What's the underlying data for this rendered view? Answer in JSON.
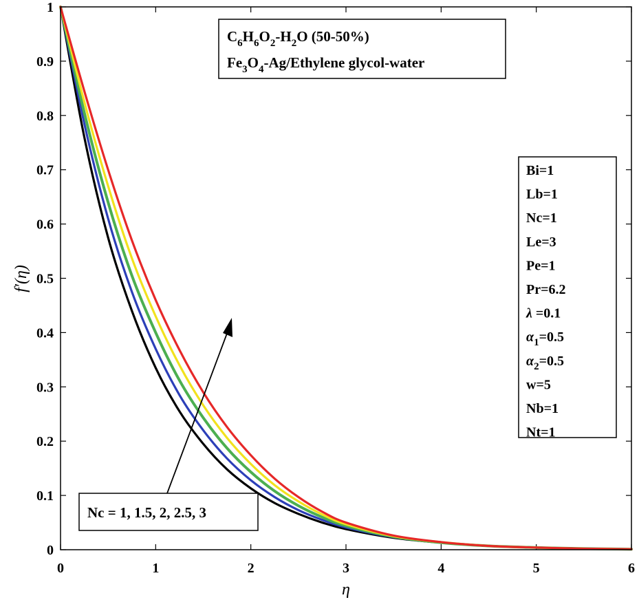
{
  "chart_data": {
    "type": "line",
    "xlabel": "η",
    "ylabel": "f′(η)",
    "xlim": [
      0,
      6
    ],
    "ylim": [
      0,
      1
    ],
    "xticks": [
      "0",
      "1",
      "2",
      "3",
      "4",
      "5",
      "6"
    ],
    "yticks": [
      "0",
      "0.1",
      "0.2",
      "0.3",
      "0.4",
      "0.5",
      "0.6",
      "0.7",
      "0.8",
      "0.9",
      "1"
    ],
    "grid": false,
    "x": [
      0,
      0.25,
      0.5,
      0.75,
      1,
      1.25,
      1.5,
      1.75,
      2,
      2.25,
      2.5,
      2.75,
      3,
      3.5,
      4,
      4.5,
      5,
      5.5,
      6
    ],
    "series": [
      {
        "color": "#000000",
        "values": [
          1,
          0.76,
          0.575,
          0.44,
          0.335,
          0.255,
          0.195,
          0.148,
          0.113,
          0.086,
          0.066,
          0.05,
          0.038,
          0.022,
          0.013,
          0.007,
          0.004,
          0.002,
          0.001
        ]
      },
      {
        "color": "#2c3fb8",
        "values": [
          1,
          0.785,
          0.61,
          0.475,
          0.37,
          0.285,
          0.22,
          0.168,
          0.128,
          0.097,
          0.073,
          0.055,
          0.041,
          0.023,
          0.013,
          0.007,
          0.004,
          0.002,
          0.001
        ]
      },
      {
        "color": "#4caf50",
        "values": [
          1,
          0.805,
          0.64,
          0.505,
          0.4,
          0.312,
          0.243,
          0.187,
          0.143,
          0.108,
          0.081,
          0.06,
          0.044,
          0.024,
          0.013,
          0.007,
          0.004,
          0.002,
          0.001
        ]
      },
      {
        "color": "#f2e21e",
        "values": [
          1,
          0.825,
          0.67,
          0.537,
          0.43,
          0.34,
          0.266,
          0.206,
          0.158,
          0.119,
          0.089,
          0.065,
          0.047,
          0.025,
          0.014,
          0.007,
          0.004,
          0.002,
          0.001
        ]
      },
      {
        "color": "#e62828",
        "values": [
          1,
          0.845,
          0.7,
          0.57,
          0.46,
          0.368,
          0.29,
          0.226,
          0.174,
          0.131,
          0.097,
          0.07,
          0.05,
          0.026,
          0.014,
          0.007,
          0.004,
          0.002,
          0.001
        ]
      }
    ],
    "title_box": {
      "line1": {
        "p1": "C",
        "s1": "6",
        "p2": "H",
        "s2": "6",
        "p3": "O",
        "s3": "2",
        "p4": "-H",
        "s4": "2",
        "p5": "O (50-50%)"
      },
      "line2": {
        "p1": "Fe",
        "s1": "3",
        "p2": "O",
        "s2": "4",
        "p3": "-Ag/Ethylene glycol-water"
      }
    },
    "params": [
      {
        "label": "Bi=1"
      },
      {
        "label": "Lb=1"
      },
      {
        "label": "Nc=1"
      },
      {
        "label": "Le=3"
      },
      {
        "label": "Pe=1"
      },
      {
        "label": "Pr=6.2"
      },
      {
        "sym": "λ",
        "label": " =0.1"
      },
      {
        "sym": "α",
        "sub": "1",
        "label": "=0.5"
      },
      {
        "sym": "α",
        "sub": "2",
        "label": "=0.5"
      },
      {
        "label": "w=5"
      },
      {
        "label": "Nb=1"
      },
      {
        "label": "Nt=1"
      }
    ],
    "annotation": "Nc = 1, 1.5, 2, 2.5, 3"
  }
}
